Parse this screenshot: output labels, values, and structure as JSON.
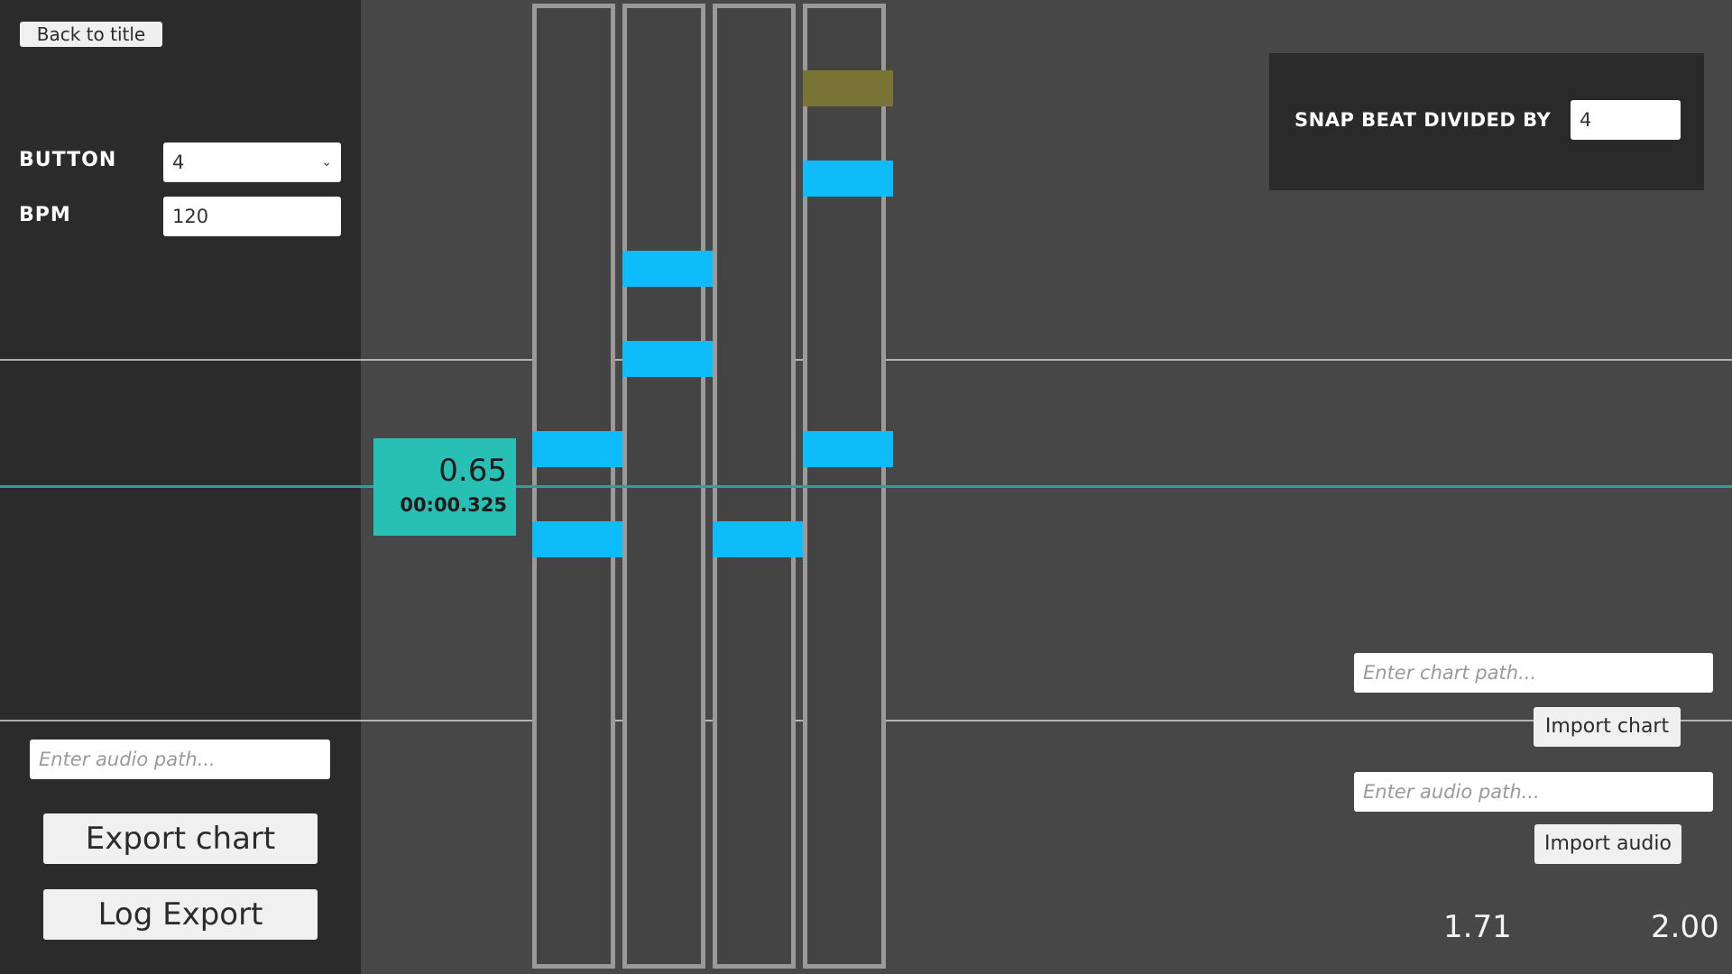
{
  "header": {
    "back_label": "Back to title"
  },
  "settings": {
    "button_label": "BUTTON",
    "button_value": "4",
    "bpm_label": "BPM",
    "bpm_value": "120"
  },
  "left_bottom": {
    "audio_placeholder": "Enter audio path...",
    "export_label": "Export chart",
    "log_export_label": "Log Export"
  },
  "position": {
    "beat": "0.65",
    "time": "00:00.325"
  },
  "snap": {
    "label": "SNAP BEAT DIVIDED BY",
    "value": "4"
  },
  "right_bottom": {
    "chart_placeholder": "Enter chart path...",
    "import_chart_label": "Import chart",
    "audio_placeholder": "Enter audio path...",
    "import_audio_label": "Import audio"
  },
  "readouts": {
    "left": "1.71",
    "right": "2.00"
  },
  "colors": {
    "note": "#0ebcf9",
    "ghost_note": "#7a7434",
    "playhead": "#2aa396",
    "position_box": "#28bfb4",
    "lane_border": "#9a9a9a"
  },
  "notes": [
    {
      "lane": 1,
      "beat": 1.0
    },
    {
      "lane": 3,
      "beat": 0.75
    },
    {
      "lane": 0,
      "beat": 0.5
    },
    {
      "lane": 2,
      "beat": 0.5
    },
    {
      "lane": 3,
      "beat": 1.5
    },
    {
      "lane": 1,
      "beat": 1.25
    },
    {
      "lane": 0,
      "beat": 0.75
    }
  ],
  "ghost_note": {
    "lane": 3,
    "beat": 1.75
  }
}
